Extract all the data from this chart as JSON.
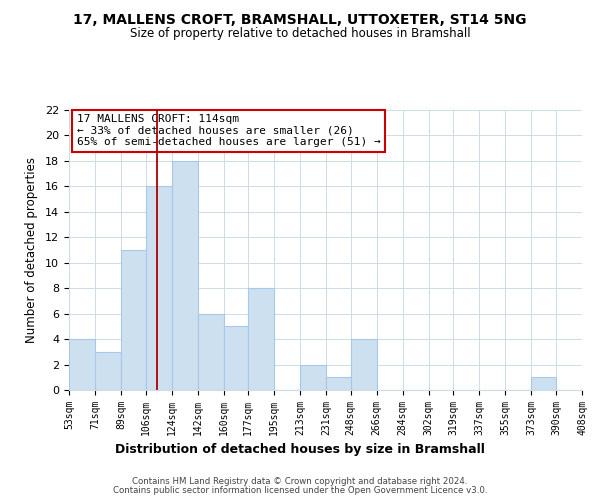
{
  "title": "17, MALLENS CROFT, BRAMSHALL, UTTOXETER, ST14 5NG",
  "subtitle": "Size of property relative to detached houses in Bramshall",
  "xlabel": "Distribution of detached houses by size in Bramshall",
  "ylabel": "Number of detached properties",
  "bin_edges": [
    53,
    71,
    89,
    106,
    124,
    142,
    160,
    177,
    195,
    213,
    231,
    248,
    266,
    284,
    302,
    319,
    337,
    355,
    373,
    390,
    408
  ],
  "bin_labels": [
    "53sqm",
    "71sqm",
    "89sqm",
    "106sqm",
    "124sqm",
    "142sqm",
    "160sqm",
    "177sqm",
    "195sqm",
    "213sqm",
    "231sqm",
    "248sqm",
    "266sqm",
    "284sqm",
    "302sqm",
    "319sqm",
    "337sqm",
    "355sqm",
    "373sqm",
    "390sqm",
    "408sqm"
  ],
  "counts": [
    4,
    3,
    11,
    16,
    18,
    6,
    5,
    8,
    0,
    2,
    1,
    4,
    0,
    0,
    0,
    0,
    0,
    0,
    1,
    0
  ],
  "bar_color": "#cce0f0",
  "bar_edge_color": "#a8c8e8",
  "marker_value": 114,
  "marker_color": "#aa0000",
  "ylim": [
    0,
    22
  ],
  "yticks": [
    0,
    2,
    4,
    6,
    8,
    10,
    12,
    14,
    16,
    18,
    20,
    22
  ],
  "annotation_title": "17 MALLENS CROFT: 114sqm",
  "annotation_line1": "← 33% of detached houses are smaller (26)",
  "annotation_line2": "65% of semi-detached houses are larger (51) →",
  "annotation_box_color": "#ffffff",
  "annotation_box_edge": "#cc0000",
  "footer1": "Contains HM Land Registry data © Crown copyright and database right 2024.",
  "footer2": "Contains public sector information licensed under the Open Government Licence v3.0.",
  "bg_color": "#ffffff",
  "grid_color": "#ccdde8"
}
